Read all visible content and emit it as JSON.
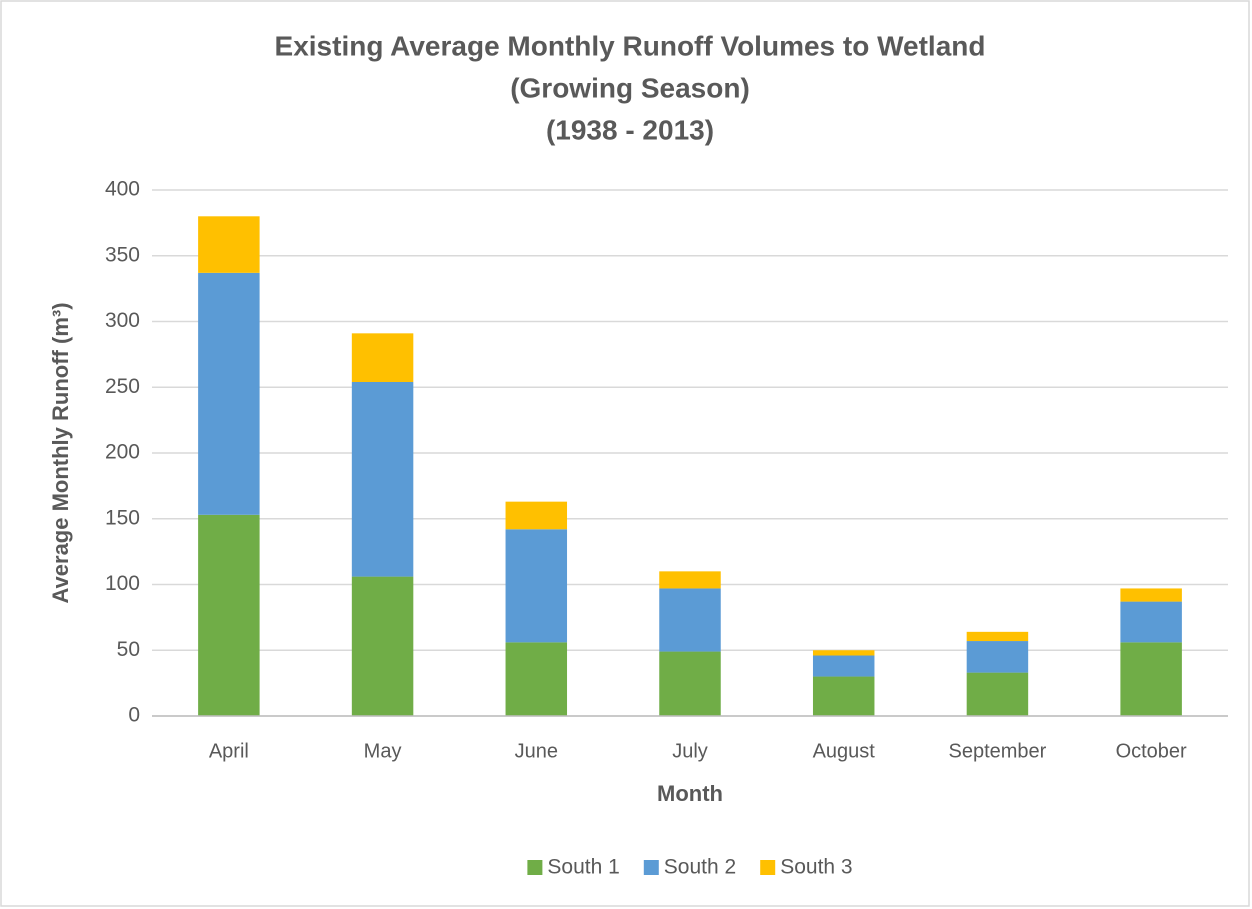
{
  "chart_data": {
    "type": "stacked_bar",
    "title": [
      "Existing Average Monthly Runoff Volumes to Wetland",
      "(Growing Season)",
      "(1938 - 2013)"
    ],
    "x_label": "Month",
    "y_label": "Average Monthly Runoff (m³)",
    "categories": [
      "April",
      "May",
      "June",
      "July",
      "August",
      "September",
      "October"
    ],
    "series": [
      {
        "name": "South 1",
        "color": "#70ad47",
        "values": [
          153,
          106,
          56,
          49,
          30,
          33,
          56
        ]
      },
      {
        "name": "South 2",
        "color": "#5b9bd5",
        "values": [
          184,
          148,
          86,
          48,
          16,
          24,
          31
        ]
      },
      {
        "name": "South 3",
        "color": "#ffc000",
        "values": [
          43,
          37,
          21,
          13,
          4,
          7,
          10
        ]
      }
    ],
    "ylim": [
      0,
      400
    ],
    "yticks": [
      0,
      50,
      100,
      150,
      200,
      250,
      300,
      350,
      400
    ],
    "grid": true,
    "legend": "bottom"
  }
}
